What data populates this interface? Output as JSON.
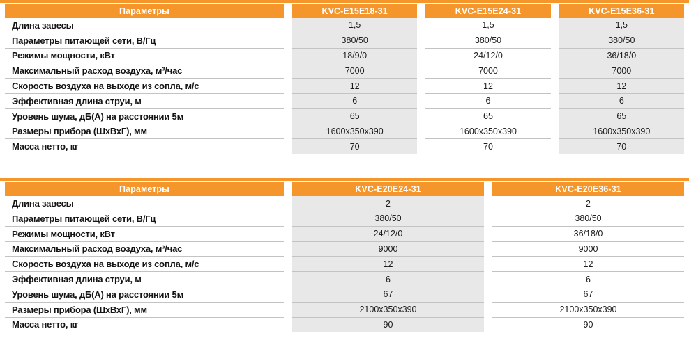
{
  "colors": {
    "header_orange": "#F4962B",
    "cell_gray": "#E8E8E8",
    "separator_gray": "#C3C3C3",
    "text_dark": "#1C1C1C"
  },
  "tables": [
    {
      "header": {
        "param_label": "Параметры",
        "columns": [
          "KVC-E15E18-31",
          "KVC-E15E24-31",
          "KVC-E15E36-31"
        ]
      },
      "rows": [
        {
          "label": "Длина завесы",
          "values": [
            "1,5",
            "1,5",
            "1,5"
          ]
        },
        {
          "label": "Параметры питающей сети, В/Гц",
          "values": [
            "380/50",
            "380/50",
            "380/50"
          ]
        },
        {
          "label": "Режимы мощности, кВт",
          "values": [
            "18/9/0",
            "24/12/0",
            "36/18/0"
          ]
        },
        {
          "label": "Максимальный расход воздуха, м³/час",
          "values": [
            "7000",
            "7000",
            "7000"
          ]
        },
        {
          "label": "Скорость воздуха на выходе из сопла, м/с",
          "values": [
            "12",
            "12",
            "12"
          ]
        },
        {
          "label": "Эффективная длина струи, м",
          "values": [
            "6",
            "6",
            "6"
          ]
        },
        {
          "label": "Уровень шума, дБ(А) на расстоянии 5м",
          "values": [
            "65",
            "65",
            "65"
          ]
        },
        {
          "label": "Размеры прибора (ШхВхГ), мм",
          "values": [
            "1600х350х390",
            "1600х350х390",
            "1600х350х390"
          ]
        },
        {
          "label": "Масса нетто, кг",
          "values": [
            "70",
            "70",
            "70"
          ]
        }
      ]
    },
    {
      "header": {
        "param_label": "Параметры",
        "columns": [
          "KVC-E20E24-31",
          "KVC-E20E36-31"
        ]
      },
      "rows": [
        {
          "label": "Длина завесы",
          "values": [
            "2",
            "2"
          ]
        },
        {
          "label": "Параметры питающей сети, В/Гц",
          "values": [
            "380/50",
            "380/50"
          ]
        },
        {
          "label": "Режимы мощности, кВт",
          "values": [
            "24/12/0",
            "36/18/0"
          ]
        },
        {
          "label": "Максимальный расход воздуха, м³/час",
          "values": [
            "9000",
            "9000"
          ]
        },
        {
          "label": "Скорость воздуха на выходе из сопла, м/с",
          "values": [
            "12",
            "12"
          ]
        },
        {
          "label": "Эффективная длина струи, м",
          "values": [
            "6",
            "6"
          ]
        },
        {
          "label": "Уровень шума, дБ(А) на расстоянии 5м",
          "values": [
            "67",
            "67"
          ]
        },
        {
          "label": "Размеры прибора (ШхВхГ), мм",
          "values": [
            "2100х350х390",
            "2100х350х390"
          ]
        },
        {
          "label": "Масса нетто, кг",
          "values": [
            "90",
            "90"
          ]
        }
      ]
    }
  ]
}
